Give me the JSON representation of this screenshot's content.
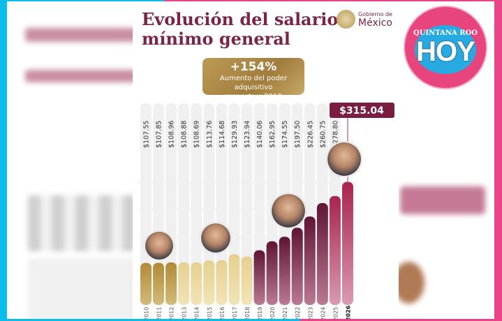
{
  "header": {
    "title_line1": "Evolución del salario",
    "title_line2": "mínimo general",
    "gov_logo": {
      "small": "Gobierno de",
      "big": "México"
    },
    "highlight": {
      "value": "+154%",
      "line1": "Aumento del poder adquisitivo",
      "line2": "respecto a 2018"
    }
  },
  "watermark": {
    "top": "QUINTANA ROO",
    "main": "HOY"
  },
  "colors": {
    "gold_dark": "#b6933f",
    "gold_light": "#ead79c",
    "maroon": "#6a1a3b",
    "pink": "#c4577f",
    "cyan_border": "#0bbdeb",
    "pink_border": "#ea4488"
  },
  "chart_data": {
    "type": "bar",
    "title": "Evolución del salario mínimo general",
    "categories": [
      "2010",
      "2011",
      "2012",
      "2013",
      "2014",
      "2015",
      "2016",
      "2017",
      "2018",
      "2019",
      "2020",
      "2021",
      "2022",
      "2023",
      "2024",
      "2025",
      "2026"
    ],
    "values": [
      107.55,
      107.85,
      108.96,
      108.88,
      108.69,
      113.76,
      114.68,
      129.93,
      123.94,
      140.06,
      162.95,
      174.55,
      197.5,
      226.45,
      260.75,
      278.8,
      315.04
    ],
    "labels": [
      "$107.55",
      "$107.85",
      "$108.96",
      "$108.88",
      "$108.69",
      "$113.76",
      "$114.68",
      "$129.93",
      "$123.94",
      "$140.06",
      "$162.95",
      "$174.55",
      "$197.50",
      "$226.45",
      "$260.75",
      "$278.80",
      "$315.04"
    ],
    "ylim": [
      0,
      330
    ],
    "grid": true
  }
}
